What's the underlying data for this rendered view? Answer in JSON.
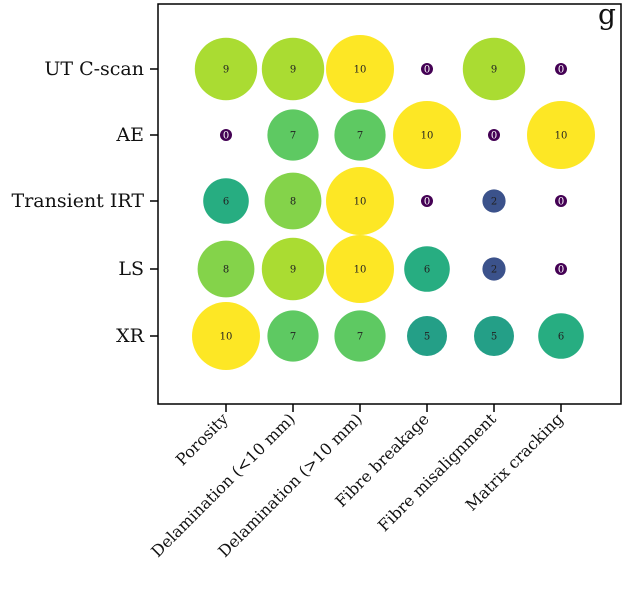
{
  "title_fragment": "g",
  "chart_data": {
    "type": "bubble-matrix",
    "title": "",
    "xlabel": "",
    "ylabel": "",
    "x_categories": [
      "Porosity",
      "Delamination (<10 mm)",
      "Delamination (>10 mm)",
      "Fibre breakage",
      "Fibre misalignment",
      "Matrix cracking"
    ],
    "y_categories": [
      "UT C-scan",
      "AE",
      "Transient IRT",
      "LS",
      "XR"
    ],
    "values": [
      [
        9,
        9,
        10,
        0,
        9,
        0
      ],
      [
        0,
        7,
        7,
        10,
        0,
        10
      ],
      [
        6,
        8,
        10,
        0,
        2,
        0
      ],
      [
        8,
        9,
        10,
        6,
        2,
        0
      ],
      [
        10,
        7,
        7,
        5,
        5,
        6
      ]
    ],
    "value_range": [
      0,
      10
    ],
    "colormap": "viridis",
    "grid": false,
    "legend": "none"
  }
}
